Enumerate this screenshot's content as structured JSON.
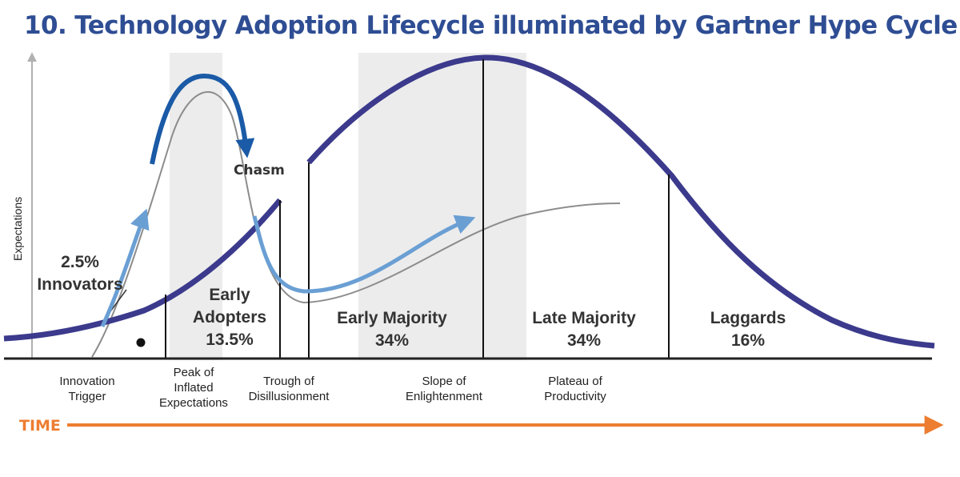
{
  "title": "10. Technology Adoption Lifecycle illuminated by Gartner Hype Cycle",
  "axis": {
    "y_label": "Expectations",
    "x_label": "TIME"
  },
  "chasm_label": "Chasm",
  "segments": [
    {
      "line1": "2.5%",
      "line2": "Innovators"
    },
    {
      "line1": "Early",
      "line2": "Adopters",
      "line3": "13.5%"
    },
    {
      "line1": "Early Majority",
      "line2": "34%"
    },
    {
      "line1": "Late Majority",
      "line2": "34%"
    },
    {
      "line1": "Laggards",
      "line2": "16%"
    }
  ],
  "phases": [
    {
      "lines": [
        "Innovation",
        "Trigger"
      ]
    },
    {
      "lines": [
        "Peak of",
        "Inflated",
        "Expectations"
      ]
    },
    {
      "lines": [
        "Trough of",
        "Disillusionment"
      ]
    },
    {
      "lines": [
        "Slope of",
        "Enlightenment"
      ]
    },
    {
      "lines": [
        "Plateau of",
        "Productivity"
      ]
    }
  ],
  "colors": {
    "title": "#2e4d93",
    "bell_curve": "#3b3a8c",
    "hype_curve": "#8c8c8c",
    "blue_arrow": "#6a9fd4",
    "dark_blue_arrow": "#1a5aa6",
    "time_arrow": "#ed7d31",
    "band": "#ececec"
  }
}
